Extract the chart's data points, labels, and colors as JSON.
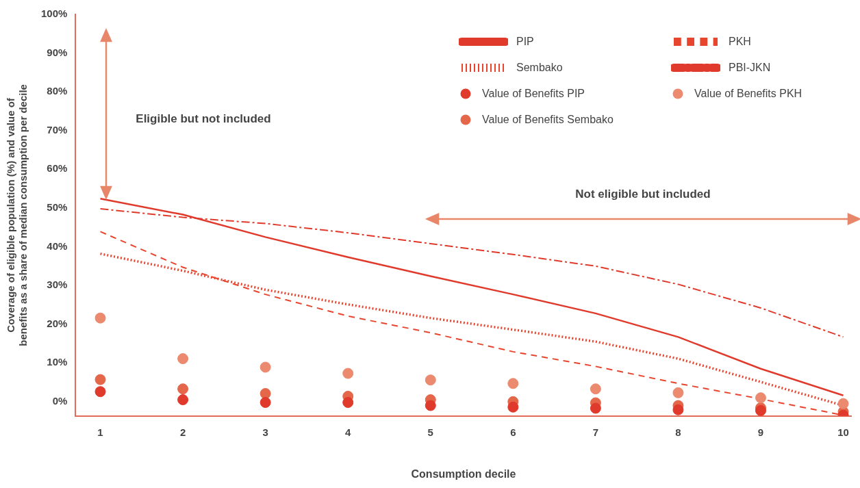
{
  "chart_data": {
    "type": "line",
    "xlabel": "Consumption decile",
    "ylabel": "Coverage of eligible population (%) and value of benefits as a share of median consumption per decile",
    "x": [
      1,
      2,
      3,
      4,
      5,
      6,
      7,
      8,
      9,
      10
    ],
    "xlim": [
      0.7,
      10.1
    ],
    "xticks": [
      1,
      2,
      3,
      4,
      5,
      6,
      7,
      8,
      9,
      10
    ],
    "ylim": [
      -3.7,
      100
    ],
    "yticks": [
      {
        "value": 0,
        "label": "0%"
      },
      {
        "value": 10,
        "label": "10%"
      },
      {
        "value": 20,
        "label": "20%"
      },
      {
        "value": 30,
        "label": "30%"
      },
      {
        "value": 40,
        "label": "40%"
      },
      {
        "value": 50,
        "label": "50%"
      },
      {
        "value": 60,
        "label": "60%"
      },
      {
        "value": 70,
        "label": "70%"
      },
      {
        "value": 80,
        "label": "80%"
      },
      {
        "value": 90,
        "label": "90%"
      },
      {
        "value": 100,
        "label": "100%"
      }
    ],
    "grid": false,
    "legend": "top right",
    "series": [
      {
        "name": "PIP",
        "line_style": "solid",
        "color": "#e03a2c",
        "values": [
          52.4,
          48.3,
          42.5,
          37.3,
          32.4,
          27.7,
          22.8,
          16.7,
          8.5,
          1.6
        ]
      },
      {
        "name": "PKH",
        "line_style": "dashed",
        "color": "#e8452f",
        "values": [
          43.9,
          34.7,
          27.7,
          22.1,
          17.8,
          12.9,
          9.1,
          4.7,
          0.7,
          -3.5
        ]
      },
      {
        "name": "Sembako",
        "line_style": "dotted",
        "color": "#e8452f",
        "values": [
          38.2,
          33.8,
          28.9,
          25.1,
          21.6,
          18.6,
          15.5,
          11.1,
          5.1,
          -1
        ]
      },
      {
        "name": "PBI-JKN",
        "line_style": "dashdot",
        "color": "#e03a2c",
        "values": [
          49.8,
          47.6,
          46,
          43.6,
          40.8,
          38,
          35,
          30.3,
          24.2,
          16.7
        ]
      },
      {
        "name": "Value of Benefits PIP",
        "type": "scatter",
        "marker": "circle",
        "color": "#e03a2c",
        "values": [
          2.6,
          0.5,
          -0.2,
          -0.2,
          -1,
          -1.4,
          -1.7,
          -2.1,
          -2.3,
          -3.5
        ]
      },
      {
        "name": "Value of Benefits PKH",
        "type": "scatter",
        "marker": "circle",
        "color": "#ec8a70",
        "values": [
          21.6,
          11.1,
          8.9,
          7.3,
          5.6,
          4.7,
          3.3,
          2.3,
          1,
          -0.5
        ]
      },
      {
        "name": "Value of Benefits Sembako",
        "type": "scatter",
        "marker": "circle",
        "color": "#e4674a",
        "values": [
          5.7,
          3.3,
          2.1,
          1.4,
          0.5,
          0,
          -0.3,
          -1,
          -1.6,
          -2.6
        ]
      }
    ],
    "annotations": [
      "Eligible but not included",
      "Not eligible but included"
    ]
  }
}
